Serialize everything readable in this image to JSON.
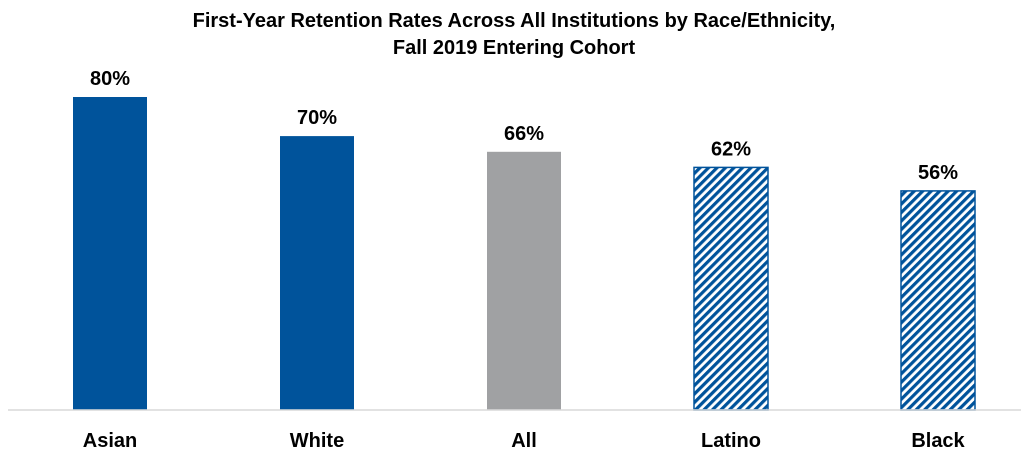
{
  "chart_data": {
    "type": "bar",
    "title_line1": "First-Year Retention Rates Across All Institutions by Race/Ethnicity,",
    "title_line2": "Fall 2019 Entering Cohort",
    "categories": [
      "Asian",
      "White",
      "All",
      "Latino",
      "Black"
    ],
    "values": [
      80,
      70,
      66,
      62,
      56
    ],
    "value_labels": [
      "80%",
      "70%",
      "66%",
      "62%",
      "56%"
    ],
    "fills": [
      "solid",
      "solid",
      "solid",
      "hatched",
      "hatched"
    ],
    "colors": [
      "#00539B",
      "#00539B",
      "#A0A1A3",
      "#00539B",
      "#00539B"
    ],
    "xlabel": "",
    "ylabel": "",
    "ylim": [
      0,
      80
    ],
    "grid": false,
    "legend": "none"
  }
}
